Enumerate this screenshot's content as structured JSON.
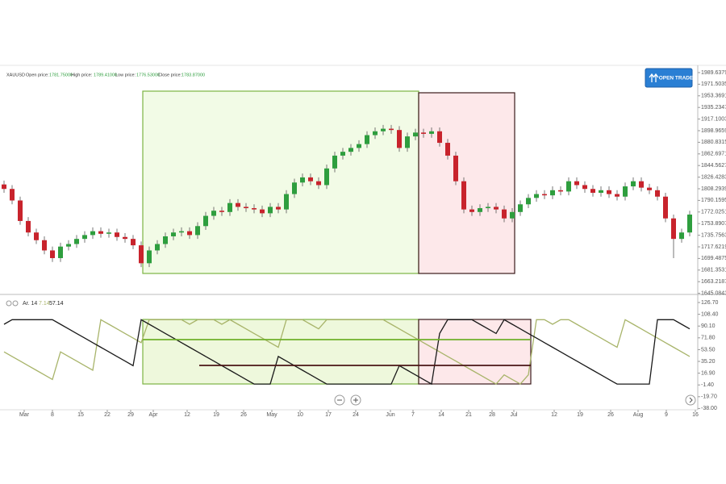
{
  "header": {
    "symbol": "XAUUSD",
    "fields": [
      {
        "label": "Open price:",
        "value": "1781.75000"
      },
      {
        "label": "High price:",
        "value": "1789.41000"
      },
      {
        "label": "Low price:",
        "value": "1776.53000"
      },
      {
        "label": "Close price:",
        "value": "1783.87000"
      }
    ],
    "button": "OPEN TRADE"
  },
  "chart_data": [
    {
      "type": "candlestick",
      "up_color": "#2e9e3e",
      "down_color": "#c8232c",
      "xlim": [
        -0.5,
        86
      ],
      "ylim": [
        1643.3,
        1999.7
      ],
      "yticks": [
        {
          "value": 1989.6379,
          "label": "1989.63790"
        },
        {
          "value": 1971.5035,
          "label": "1971.50350"
        },
        {
          "value": 1953.3691,
          "label": "1953.36910"
        },
        {
          "value": 1935.2347,
          "label": "1935.23470"
        },
        {
          "value": 1917.1003,
          "label": "1917.10030"
        },
        {
          "value": 1898.9659,
          "label": "1898.96590"
        },
        {
          "value": 1880.8315,
          "label": "1880.83150"
        },
        {
          "value": 1862.6971,
          "label": "1862.69710"
        },
        {
          "value": 1844.5627,
          "label": "1844.56270"
        },
        {
          "value": 1826.4283,
          "label": "1826.42830"
        },
        {
          "value": 1808.2939,
          "label": "1808.29390"
        },
        {
          "value": 1790.1595,
          "label": "1790.15950"
        },
        {
          "value": 1772.0251,
          "label": "1772.02510"
        },
        {
          "value": 1753.8907,
          "label": "1753.89070"
        },
        {
          "value": 1735.7563,
          "label": "1735.75630"
        },
        {
          "value": 1717.6219,
          "label": "1717.62190"
        },
        {
          "value": 1699.4875,
          "label": "1699.48750"
        },
        {
          "value": 1681.3531,
          "label": "1681.35310"
        },
        {
          "value": 1663.2187,
          "label": "1663.21870"
        },
        {
          "value": 1645.0843,
          "label": "1645.08430"
        }
      ],
      "open": [
        1815,
        1808,
        1790,
        1758,
        1740,
        1728,
        1712,
        1700,
        1718,
        1722,
        1730,
        1736,
        1742,
        1738,
        1740,
        1733,
        1730,
        1720,
        1692,
        1712,
        1722,
        1734,
        1740,
        1742,
        1736,
        1750,
        1766,
        1774,
        1772,
        1786,
        1780,
        1778,
        1776,
        1770,
        1780,
        1776,
        1800,
        1818,
        1826,
        1820,
        1814,
        1840,
        1860,
        1866,
        1872,
        1878,
        1892,
        1898,
        1902,
        1900,
        1872,
        1890,
        1896,
        1894,
        1898,
        1880,
        1860,
        1820,
        1776,
        1772,
        1778,
        1780,
        1776,
        1762,
        1772,
        1784,
        1794,
        1800,
        1798,
        1806,
        1804,
        1820,
        1814,
        1808,
        1802,
        1806,
        1800,
        1796,
        1812,
        1820,
        1810,
        1806,
        1796,
        1762,
        1730,
        1740
      ],
      "high": [
        1821,
        1814,
        1796,
        1764,
        1746,
        1734,
        1718,
        1724,
        1728,
        1736,
        1742,
        1748,
        1748,
        1746,
        1746,
        1739,
        1736,
        1726,
        1718,
        1728,
        1740,
        1746,
        1748,
        1748,
        1756,
        1772,
        1780,
        1780,
        1792,
        1792,
        1786,
        1784,
        1782,
        1786,
        1786,
        1806,
        1824,
        1832,
        1832,
        1826,
        1846,
        1866,
        1872,
        1878,
        1884,
        1898,
        1904,
        1908,
        1908,
        1906,
        1896,
        1902,
        1902,
        1904,
        1904,
        1886,
        1866,
        1826,
        1782,
        1784,
        1786,
        1786,
        1782,
        1778,
        1790,
        1800,
        1806,
        1806,
        1812,
        1812,
        1826,
        1826,
        1820,
        1814,
        1812,
        1812,
        1806,
        1818,
        1826,
        1826,
        1816,
        1812,
        1802,
        1768,
        1746,
        1774
      ],
      "low": [
        1802,
        1784,
        1752,
        1734,
        1722,
        1706,
        1694,
        1694,
        1712,
        1716,
        1724,
        1730,
        1732,
        1732,
        1727,
        1724,
        1714,
        1686,
        1686,
        1706,
        1716,
        1728,
        1734,
        1730,
        1730,
        1744,
        1760,
        1766,
        1766,
        1774,
        1772,
        1770,
        1764,
        1764,
        1770,
        1770,
        1794,
        1812,
        1814,
        1808,
        1808,
        1834,
        1854,
        1860,
        1866,
        1872,
        1886,
        1892,
        1894,
        1866,
        1866,
        1884,
        1888,
        1888,
        1874,
        1854,
        1814,
        1770,
        1766,
        1766,
        1772,
        1770,
        1756,
        1756,
        1766,
        1778,
        1788,
        1792,
        1792,
        1798,
        1798,
        1808,
        1802,
        1796,
        1796,
        1794,
        1790,
        1790,
        1806,
        1804,
        1800,
        1790,
        1756,
        1700,
        1724,
        1734
      ],
      "close": [
        1808,
        1790,
        1758,
        1740,
        1728,
        1712,
        1700,
        1718,
        1722,
        1730,
        1736,
        1742,
        1738,
        1740,
        1733,
        1730,
        1720,
        1692,
        1712,
        1722,
        1734,
        1740,
        1742,
        1736,
        1750,
        1766,
        1774,
        1772,
        1786,
        1780,
        1778,
        1776,
        1770,
        1780,
        1776,
        1800,
        1818,
        1826,
        1820,
        1814,
        1840,
        1860,
        1866,
        1872,
        1878,
        1892,
        1898,
        1902,
        1900,
        1872,
        1890,
        1896,
        1894,
        1898,
        1880,
        1860,
        1820,
        1776,
        1772,
        1778,
        1780,
        1776,
        1762,
        1772,
        1784,
        1794,
        1800,
        1798,
        1806,
        1804,
        1820,
        1814,
        1808,
        1802,
        1806,
        1800,
        1796,
        1812,
        1820,
        1810,
        1806,
        1796,
        1762,
        1730,
        1740,
        1768
      ]
    },
    {
      "type": "line",
      "indicator": "Ar. 14",
      "readout": [
        7.14,
        57.14
      ],
      "xlim": [
        -0.5,
        86
      ],
      "ylim": [
        -40,
        138
      ],
      "yticks": [
        {
          "value": 126.7,
          "label": "126.70"
        },
        {
          "value": 108.4,
          "label": "108.40"
        },
        {
          "value": 90.1,
          "label": "90.10"
        },
        {
          "value": 71.8,
          "label": "71.80"
        },
        {
          "value": 53.5,
          "label": "53.50"
        },
        {
          "value": 35.2,
          "label": "35.20"
        },
        {
          "value": 16.9,
          "label": "16.90"
        },
        {
          "value": -1.4,
          "label": "-1.40"
        },
        {
          "value": -19.7,
          "label": "-19.70"
        },
        {
          "value": -38,
          "label": "-38.00"
        }
      ],
      "xticks": [
        {
          "value": 2.5,
          "label": "Mar"
        },
        {
          "value": 6,
          "label": "8"
        },
        {
          "value": 9.5,
          "label": "15"
        },
        {
          "value": 12.8,
          "label": "22"
        },
        {
          "value": 15.7,
          "label": "29"
        },
        {
          "value": 18.5,
          "label": "Apr"
        },
        {
          "value": 22.7,
          "label": "12"
        },
        {
          "value": 26.3,
          "label": "19"
        },
        {
          "value": 29.7,
          "label": "26"
        },
        {
          "value": 33.2,
          "label": "May"
        },
        {
          "value": 36.7,
          "label": "10"
        },
        {
          "value": 40.2,
          "label": "17"
        },
        {
          "value": 43.6,
          "label": "24"
        },
        {
          "value": 47.9,
          "label": "Jun"
        },
        {
          "value": 50.7,
          "label": "7"
        },
        {
          "value": 54.2,
          "label": "14"
        },
        {
          "value": 57.6,
          "label": "21"
        },
        {
          "value": 60.5,
          "label": "28"
        },
        {
          "value": 63.2,
          "label": "Jul"
        },
        {
          "value": 68.2,
          "label": "12"
        },
        {
          "value": 71.4,
          "label": "19"
        },
        {
          "value": 75.2,
          "label": "26"
        },
        {
          "value": 78.6,
          "label": "Aug"
        },
        {
          "value": 82.1,
          "label": "9"
        },
        {
          "value": 85.7,
          "label": "16"
        }
      ],
      "series": [
        {
          "color": "#a8b46a",
          "values": [
            50,
            42.86,
            35.71,
            28.57,
            21.43,
            14.29,
            7.14,
            50,
            42.86,
            35.71,
            28.57,
            21.43,
            100,
            92.86,
            85.71,
            78.57,
            71.43,
            64.29,
            100,
            100,
            100,
            100,
            100,
            92.86,
            100,
            100,
            100,
            92.86,
            100,
            92.86,
            85.71,
            78.57,
            71.43,
            64.29,
            57.14,
            100,
            100,
            100,
            92.86,
            85.71,
            100,
            100,
            100,
            100,
            100,
            100,
            100,
            100,
            92.86,
            85.71,
            78.57,
            71.43,
            64.29,
            57.14,
            50,
            42.86,
            35.71,
            28.57,
            21.43,
            14.29,
            7.14,
            0,
            14.29,
            7.14,
            0,
            14.29,
            100,
            100,
            92.86,
            100,
            100,
            92.86,
            85.71,
            78.57,
            71.43,
            64.29,
            57.14,
            100,
            92.86,
            85.71,
            78.57,
            71.43,
            64.29,
            57.14,
            50,
            42.86
          ]
        },
        {
          "color": "#1a1a1a",
          "values": [
            92.86,
            100,
            100,
            100,
            100,
            100,
            100,
            92.86,
            85.71,
            78.57,
            71.43,
            64.29,
            57.14,
            50,
            42.86,
            35.71,
            28.57,
            100,
            92.86,
            85.71,
            78.57,
            71.43,
            64.29,
            57.14,
            50,
            42.86,
            35.71,
            28.57,
            21.43,
            14.29,
            7.14,
            0,
            0,
            0,
            42.86,
            35.71,
            28.57,
            21.43,
            14.29,
            7.14,
            0,
            0,
            0,
            0,
            0,
            0,
            0,
            0,
            0,
            28.57,
            21.43,
            14.29,
            7.14,
            0,
            78.57,
            100,
            100,
            100,
            100,
            92.86,
            85.71,
            78.57,
            100,
            92.86,
            85.71,
            78.57,
            71.43,
            64.29,
            57.14,
            50,
            42.86,
            35.71,
            28.57,
            21.43,
            14.29,
            7.14,
            0,
            0,
            0,
            0,
            0,
            100,
            100,
            100,
            92.86,
            85.71
          ]
        }
      ]
    }
  ]
}
